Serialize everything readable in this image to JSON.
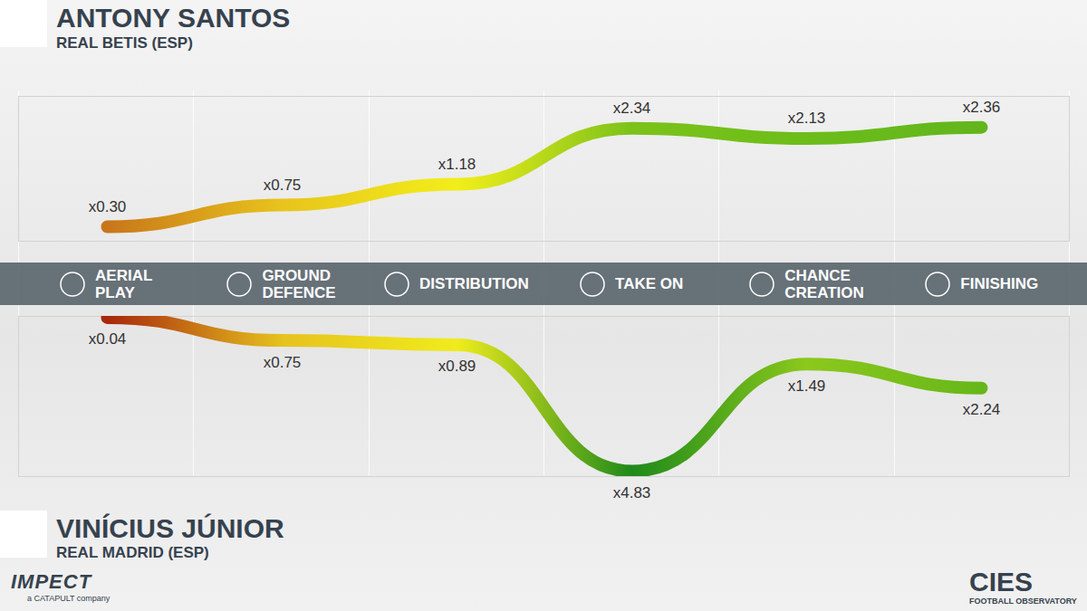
{
  "chart_data": [
    {
      "type": "line",
      "title": "ANTONY SANTOS",
      "subtitle": "REAL BETIS (ESP)",
      "categories": [
        "AERIAL PLAY",
        "GROUND DEFENCE",
        "DISTRIBUTION",
        "TAKE ON",
        "CHANCE CREATION",
        "FINISHING"
      ],
      "series": [
        {
          "name": "ANTONY SANTOS",
          "values": [
            0.3,
            0.75,
            1.18,
            2.34,
            2.13,
            2.36
          ],
          "value_labels": [
            "x0.30",
            "x0.75",
            "x1.18",
            "x2.34",
            "x2.13",
            "x2.36"
          ],
          "colors": [
            "#c8761a",
            "#e8c41c",
            "#f2ee1a",
            "#7cc21a",
            "#6cbd1a",
            "#62b61c"
          ]
        }
      ],
      "ylim": [
        0,
        3
      ],
      "yticks": [],
      "tick_labels": false,
      "data_labels": true
    },
    {
      "type": "line",
      "title": "VINÍCIUS JÚNIOR",
      "subtitle": "REAL MADRID (ESP)",
      "categories": [
        "AERIAL PLAY",
        "GROUND DEFENCE",
        "DISTRIBUTION",
        "TAKE ON",
        "CHANCE CREATION",
        "FINISHING"
      ],
      "series": [
        {
          "name": "VINÍCIUS JÚNIOR",
          "values": [
            0.04,
            0.75,
            0.89,
            4.83,
            1.49,
            2.24
          ],
          "value_labels": [
            "x0.04",
            "x0.75",
            "x0.89",
            "x4.83",
            "x1.49",
            "x2.24"
          ],
          "colors": [
            "#a8280c",
            "#e6c21e",
            "#f0ec1c",
            "#1f8a1a",
            "#8cc81c",
            "#66b71a"
          ]
        }
      ],
      "ylim": [
        0,
        5
      ],
      "yticks": [],
      "tick_labels": false,
      "data_labels": true
    }
  ],
  "footer": {
    "left": "IMPECT",
    "left_sub": "a CATAPULT company",
    "right": "CIES",
    "right_sub": "FOOTBALL OBSERVATORY"
  }
}
